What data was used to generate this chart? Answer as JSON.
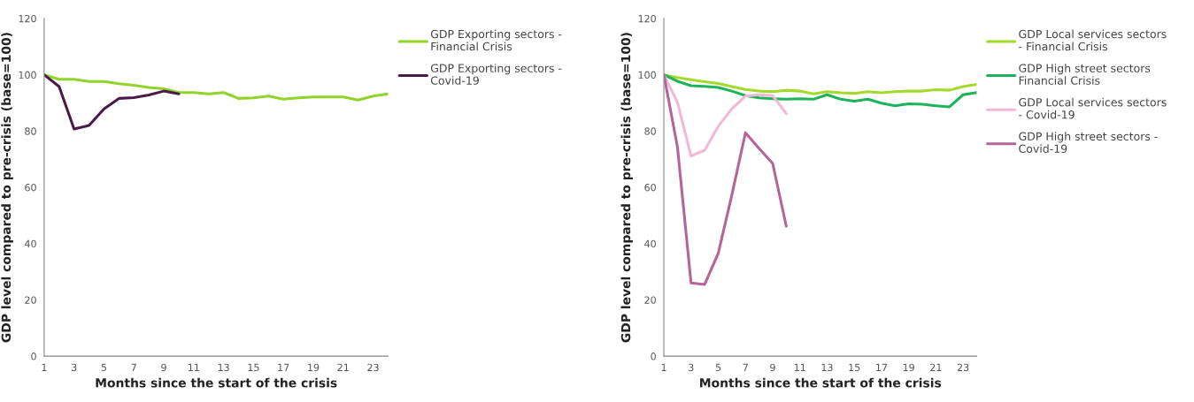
{
  "chart_data": [
    {
      "type": "line",
      "xlabel": "Months since the start of the crisis",
      "ylabel": "GDP level compared to pre-crisis (base=100)",
      "x": [
        1,
        2,
        3,
        4,
        5,
        6,
        7,
        8,
        9,
        10,
        11,
        12,
        13,
        14,
        15,
        16,
        17,
        18,
        19,
        20,
        21,
        22,
        23,
        24
      ],
      "xlim": [
        1,
        24
      ],
      "xticks": [
        1,
        3,
        5,
        7,
        9,
        11,
        13,
        15,
        17,
        19,
        21,
        23
      ],
      "ylim": [
        0,
        120
      ],
      "yticks": [
        0,
        20,
        40,
        60,
        80,
        100,
        120
      ],
      "grid": false,
      "legend": "right",
      "line_style": "solid",
      "marker": "none",
      "series": [
        {
          "name": "GDP Exporting sectors - Financial Crisis",
          "color": "#8fd32b",
          "values": [
            100,
            98.4,
            98.4,
            97.6,
            97.6,
            96.8,
            96.3,
            95.5,
            95,
            93.7,
            93.7,
            93.2,
            93.7,
            91.6,
            91.8,
            92.4,
            91.3,
            91.8,
            92.1,
            92.1,
            92.1,
            91,
            92.4,
            93.2
          ]
        },
        {
          "name": "GDP Exporting sectors - Covid-19",
          "color": "#4a1a48",
          "x": [
            1,
            2,
            3,
            4,
            5,
            6,
            7,
            8,
            9,
            10
          ],
          "values": [
            100,
            95.8,
            80.7,
            82,
            87.9,
            91.6,
            91.9,
            92.8,
            94.2,
            93.2
          ]
        }
      ]
    },
    {
      "type": "line",
      "xlabel": "Months since the start of the crisis",
      "ylabel": "GDP level compared to pre-crisis (base=100)",
      "x": [
        1,
        2,
        3,
        4,
        5,
        6,
        7,
        8,
        9,
        10,
        11,
        12,
        13,
        14,
        15,
        16,
        17,
        18,
        19,
        20,
        21,
        22,
        23,
        24
      ],
      "xlim": [
        1,
        24
      ],
      "xticks": [
        1,
        3,
        5,
        7,
        9,
        11,
        13,
        15,
        17,
        19,
        21,
        23
      ],
      "ylim": [
        0,
        120
      ],
      "yticks": [
        0,
        20,
        40,
        60,
        80,
        100,
        120
      ],
      "grid": false,
      "legend": "right",
      "line_style": "solid",
      "marker": "none",
      "series": [
        {
          "name": "GDP Local services sectors - Financial Crisis",
          "color": "#a3d92a",
          "values": [
            100,
            99,
            98.2,
            97.5,
            96.9,
            95.8,
            94.8,
            94.2,
            94,
            94.5,
            94.2,
            93.2,
            94,
            93.6,
            93.4,
            94,
            93.6,
            94,
            94.2,
            94.2,
            94.7,
            94.5,
            95.8,
            96.6
          ]
        },
        {
          "name": "GDP High street sectors Financial Crisis",
          "color": "#1db35a",
          "values": [
            100,
            97.7,
            96.1,
            95.9,
            95.5,
            94.2,
            92.6,
            91.8,
            91.5,
            91.3,
            91.5,
            91.3,
            92.9,
            91.3,
            90.6,
            91.3,
            89.9,
            89,
            89.7,
            89.5,
            89,
            88.6,
            92.9,
            93.7
          ]
        },
        {
          "name": "GDP Local services sectors - Covid-19",
          "color": "#f2b8d8",
          "x": [
            1,
            2,
            3,
            4,
            5,
            6,
            7,
            8,
            9,
            10
          ],
          "values": [
            100,
            90.2,
            71.1,
            73.2,
            81.7,
            87.9,
            92.4,
            92.9,
            92.6,
            86.2
          ]
        },
        {
          "name": "GDP High street sectors - Covid-19",
          "color": "#b5649a",
          "x": [
            1,
            2,
            3,
            4,
            5,
            6,
            7,
            8,
            9,
            10
          ],
          "values": [
            100,
            74.3,
            26,
            25.5,
            36.6,
            57.3,
            79.4,
            73.8,
            68.5,
            46.2
          ]
        }
      ]
    }
  ]
}
